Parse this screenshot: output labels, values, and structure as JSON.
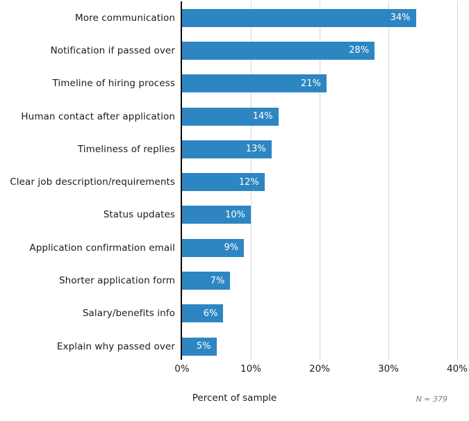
{
  "chart_data": {
    "type": "bar",
    "orientation": "horizontal",
    "title": "",
    "xlabel": "Percent of sample",
    "ylabel": "",
    "categories": [
      "More communication",
      "Notification if passed over",
      "Timeline of hiring process",
      "Human contact after application",
      "Timeliness of replies",
      "Clear job description/requirements",
      "Status updates",
      "Application confirmation email",
      "Shorter application form",
      "Salary/benefits info",
      "Explain why passed over"
    ],
    "values": [
      34,
      28,
      21,
      14,
      13,
      12,
      10,
      9,
      7,
      6,
      5
    ],
    "value_labels": [
      "34%",
      "28%",
      "21%",
      "14%",
      "13%",
      "12%",
      "10%",
      "9%",
      "7%",
      "6%",
      "5%"
    ],
    "xlim": [
      0,
      40
    ],
    "xticks": [
      {
        "value": 0,
        "label": "0%"
      },
      {
        "value": 10,
        "label": "10%"
      },
      {
        "value": 20,
        "label": "20%"
      },
      {
        "value": 30,
        "label": "30%"
      },
      {
        "value": 40,
        "label": "40%"
      }
    ],
    "grid": "vertical",
    "legend": "none",
    "note": "N = 379",
    "colors": {
      "bar": "#2d86c2",
      "value_text": "#ffffff",
      "gridline": "#d8d8d8",
      "axis_line": "#000000",
      "label_text": "#1a1a1a",
      "note_text": "#7a7a7a"
    }
  }
}
